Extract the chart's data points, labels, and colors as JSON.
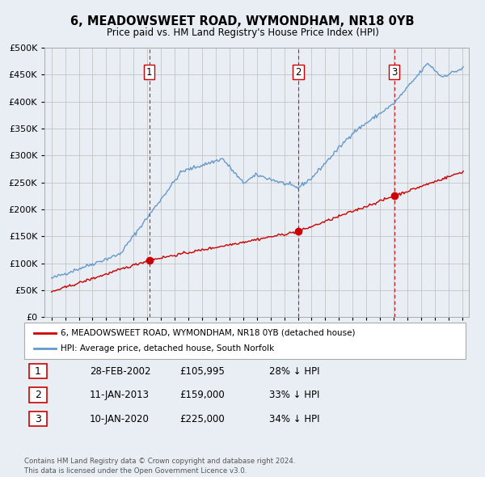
{
  "title": "6, MEADOWSWEET ROAD, WYMONDHAM, NR18 0YB",
  "subtitle": "Price paid vs. HM Land Registry's House Price Index (HPI)",
  "legend_label_red": "6, MEADOWSWEET ROAD, WYMONDHAM, NR18 0YB (detached house)",
  "legend_label_blue": "HPI: Average price, detached house, South Norfolk",
  "transactions": [
    {
      "label": "1",
      "date": "28-FEB-2002",
      "price": 105995,
      "x": 2002.15,
      "hpi_pct": "28% ↓ HPI"
    },
    {
      "label": "2",
      "date": "11-JAN-2013",
      "price": 159000,
      "x": 2013.03,
      "hpi_pct": "33% ↓ HPI"
    },
    {
      "label": "3",
      "date": "10-JAN-2020",
      "price": 225000,
      "x": 2020.03,
      "hpi_pct": "34% ↓ HPI"
    }
  ],
  "footer": "Contains HM Land Registry data © Crown copyright and database right 2024.\nThis data is licensed under the Open Government Licence v3.0.",
  "color_red": "#cc0000",
  "color_blue": "#6699cc",
  "color_vline": "#cc0000",
  "ylim": [
    0,
    500000
  ],
  "yticks": [
    0,
    50000,
    100000,
    150000,
    200000,
    250000,
    300000,
    350000,
    400000,
    450000,
    500000
  ],
  "xlim": [
    1994.5,
    2025.5
  ],
  "bg_color": "#e8eef4",
  "plot_bg": "#e8eef4"
}
